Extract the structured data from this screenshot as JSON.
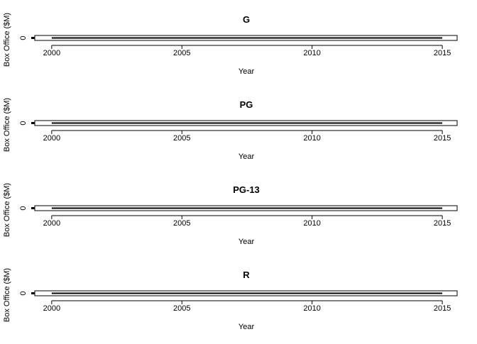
{
  "chart_data": [
    {
      "type": "line",
      "title": "G",
      "x_label": "Year",
      "y_label": "Box Office ($M)",
      "x": [
        2000,
        2001,
        2002,
        2003,
        2004,
        2005,
        2006,
        2007,
        2008,
        2009,
        2010,
        2011,
        2012,
        2013,
        2014,
        2015
      ],
      "values": [
        0,
        0,
        0,
        0,
        0,
        0,
        0,
        0,
        0,
        0,
        0,
        0,
        0,
        0,
        0,
        0
      ],
      "color": "#000000",
      "xlim": [
        1999.35,
        2015.57
      ],
      "xticks": [
        2000,
        2005,
        2010,
        2015
      ],
      "ylim": [
        -0.5,
        0.5
      ],
      "yticks": [
        0
      ]
    },
    {
      "type": "line",
      "title": "PG",
      "x_label": "Year",
      "y_label": "Box Office ($M)",
      "x": [
        2000,
        2001,
        2002,
        2003,
        2004,
        2005,
        2006,
        2007,
        2008,
        2009,
        2010,
        2011,
        2012,
        2013,
        2014,
        2015
      ],
      "values": [
        0,
        0,
        0,
        0,
        0,
        0,
        0,
        0,
        0,
        0,
        0,
        0,
        0,
        0,
        0,
        0
      ],
      "color": "#000000",
      "xlim": [
        1999.35,
        2015.57
      ],
      "xticks": [
        2000,
        2005,
        2010,
        2015
      ],
      "ylim": [
        -0.5,
        0.5
      ],
      "yticks": [
        0
      ]
    },
    {
      "type": "line",
      "title": "PG-13",
      "x_label": "Year",
      "y_label": "Box Office ($M)",
      "x": [
        2000,
        2001,
        2002,
        2003,
        2004,
        2005,
        2006,
        2007,
        2008,
        2009,
        2010,
        2011,
        2012,
        2013,
        2014,
        2015
      ],
      "values": [
        0,
        0,
        0,
        0,
        0,
        0,
        0,
        0,
        0,
        0,
        0,
        0,
        0,
        0,
        0,
        0
      ],
      "color": "#000000",
      "xlim": [
        1999.35,
        2015.57
      ],
      "xticks": [
        2000,
        2005,
        2010,
        2015
      ],
      "ylim": [
        -0.5,
        0.5
      ],
      "yticks": [
        0
      ]
    },
    {
      "type": "line",
      "title": "R",
      "x_label": "Year",
      "y_label": "Box Office ($M)",
      "x": [
        2000,
        2001,
        2002,
        2003,
        2004,
        2005,
        2006,
        2007,
        2008,
        2009,
        2010,
        2011,
        2012,
        2013,
        2014,
        2015
      ],
      "values": [
        0,
        0,
        0,
        0,
        0,
        0,
        0,
        0,
        0,
        0,
        0,
        0,
        0,
        0,
        0,
        0
      ],
      "color": "#000000",
      "xlim": [
        1999.35,
        2015.57
      ],
      "xticks": [
        2000,
        2005,
        2010,
        2015
      ],
      "ylim": [
        -0.5,
        0.5
      ],
      "yticks": [
        0
      ]
    }
  ]
}
